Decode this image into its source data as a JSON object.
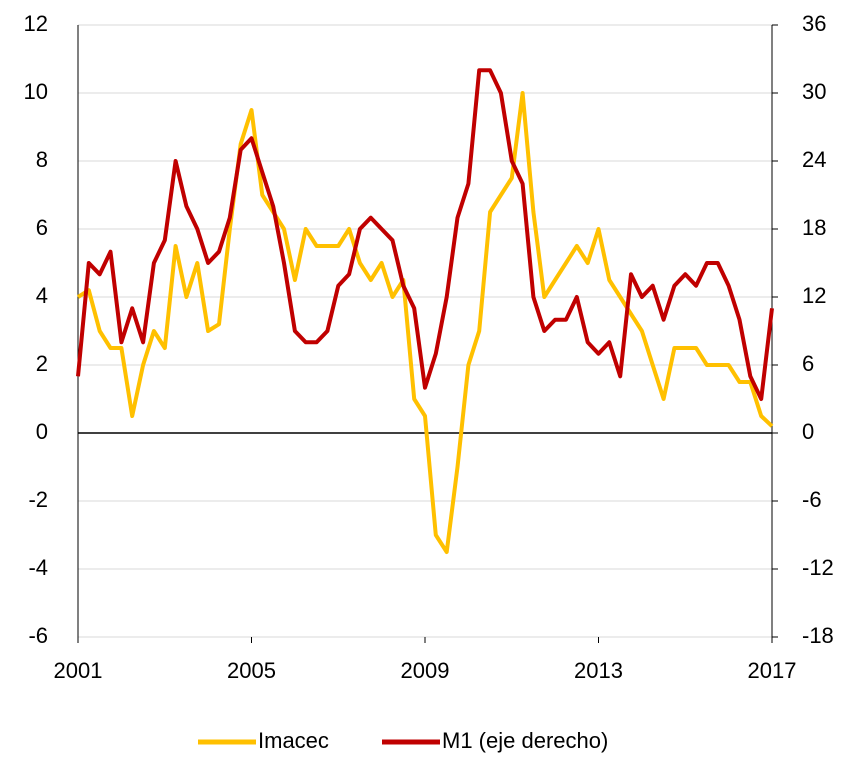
{
  "chart_data": {
    "type": "line",
    "x": [
      2001,
      2001.25,
      2001.5,
      2001.75,
      2002,
      2002.25,
      2002.5,
      2002.75,
      2003,
      2003.25,
      2003.5,
      2003.75,
      2004,
      2004.25,
      2004.5,
      2004.75,
      2005,
      2005.25,
      2005.5,
      2005.75,
      2006,
      2006.25,
      2006.5,
      2006.75,
      2007,
      2007.25,
      2007.5,
      2007.75,
      2008,
      2008.25,
      2008.5,
      2008.75,
      2009,
      2009.25,
      2009.5,
      2009.75,
      2010,
      2010.25,
      2010.5,
      2010.75,
      2011,
      2011.25,
      2011.5,
      2011.75,
      2012,
      2012.25,
      2012.5,
      2012.75,
      2013,
      2013.25,
      2013.5,
      2013.75,
      2014,
      2014.25,
      2014.5,
      2014.75,
      2015,
      2015.25,
      2015.5,
      2015.75,
      2016,
      2016.25,
      2016.5,
      2016.75,
      2017
    ],
    "series": [
      {
        "name": "Imacec",
        "color": "#ffc000",
        "values": [
          4,
          4.2,
          3,
          2.5,
          2.5,
          0.5,
          2,
          3,
          2.5,
          5.5,
          4,
          5,
          3,
          3.2,
          6,
          8.5,
          9.5,
          7,
          6.5,
          6,
          4.5,
          6,
          5.5,
          5.5,
          5.5,
          6,
          5,
          4.5,
          5,
          4,
          4.5,
          1,
          0.5,
          -3,
          -3.5,
          -1,
          2,
          3,
          6.5,
          7,
          7.5,
          10,
          6.5,
          4,
          4.5,
          5,
          5.5,
          5,
          6,
          4.5,
          4,
          3.5,
          3,
          2,
          1,
          2.5,
          2.5,
          2.5,
          2,
          2,
          2,
          1.5,
          1.5,
          0.5,
          0.2
        ]
      },
      {
        "name": "M1 (eje derecho)",
        "color": "#c00000",
        "axis": "y2",
        "values": [
          5,
          15,
          14,
          16,
          8,
          11,
          8,
          15,
          17,
          24,
          20,
          18,
          15,
          16,
          19,
          25,
          26,
          23,
          20,
          15,
          9,
          8,
          8,
          9,
          13,
          14,
          18,
          19,
          18,
          17,
          13,
          11,
          4,
          7,
          12,
          19,
          22,
          32,
          32,
          30,
          24,
          22,
          12,
          9,
          10,
          10,
          12,
          8,
          7,
          8,
          5,
          14,
          12,
          13,
          10,
          13,
          14,
          13,
          15,
          15,
          13,
          10,
          5,
          3,
          11
        ]
      }
    ],
    "xlim": [
      2001,
      2017
    ],
    "xticks": [
      2001,
      2005,
      2009,
      2013,
      2017
    ],
    "ylim": [
      -6,
      12
    ],
    "yticks": [
      -6,
      -4,
      -2,
      0,
      2,
      4,
      6,
      8,
      10,
      12
    ],
    "y2lim": [
      -18,
      36
    ],
    "y2ticks": [
      -18,
      -12,
      -6,
      0,
      6,
      12,
      18,
      24,
      30,
      36
    ],
    "grid": true,
    "legend": "bottom"
  }
}
